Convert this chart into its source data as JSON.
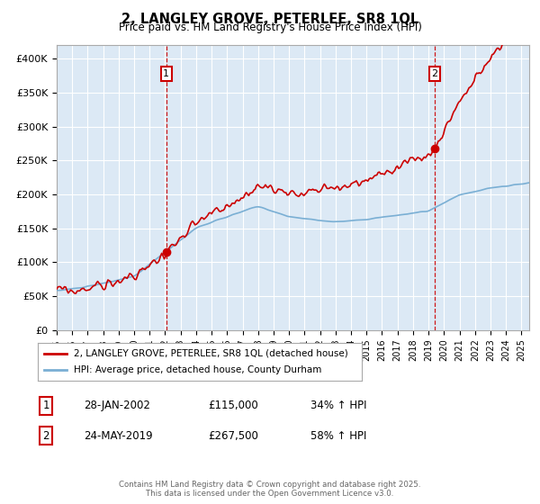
{
  "title": "2, LANGLEY GROVE, PETERLEE, SR8 1QL",
  "subtitle": "Price paid vs. HM Land Registry's House Price Index (HPI)",
  "sale1_date": "28-JAN-2002",
  "sale1_price": 115000,
  "sale1_label": "34% ↑ HPI",
  "sale2_date": "24-MAY-2019",
  "sale2_price": 267500,
  "sale2_label": "58% ↑ HPI",
  "legend_line1": "2, LANGLEY GROVE, PETERLEE, SR8 1QL (detached house)",
  "legend_line2": "HPI: Average price, detached house, County Durham",
  "footnote1": "Contains HM Land Registry data © Crown copyright and database right 2025.",
  "footnote2": "This data is licensed under the Open Government Licence v3.0.",
  "red_color": "#cc0000",
  "blue_color": "#7aafd4",
  "bg_color": "#dce9f5",
  "grid_color": "#ffffff",
  "annotation_box_color": "#cc0000",
  "dashed_line_color": "#cc0000",
  "yticks": [
    0,
    50000,
    100000,
    150000,
    200000,
    250000,
    300000,
    350000,
    400000
  ],
  "ylabels": [
    "£0",
    "£50K",
    "£100K",
    "£150K",
    "£200K",
    "£250K",
    "£300K",
    "£350K",
    "£400K"
  ],
  "xlim": [
    1995,
    2025.5
  ],
  "ylim": [
    0,
    420000
  ]
}
